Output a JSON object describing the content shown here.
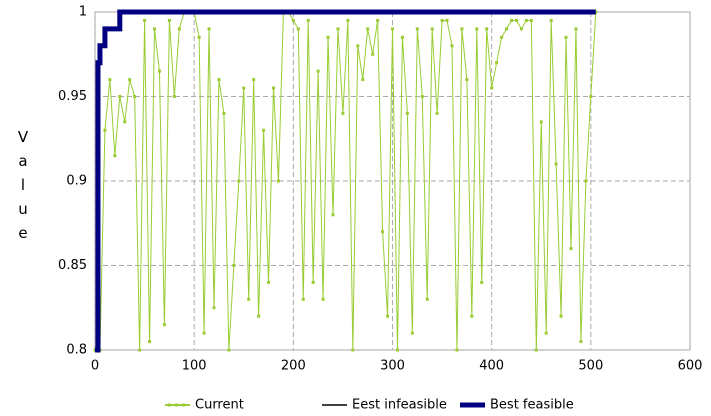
{
  "chart_data": {
    "type": "line",
    "ylabel": "Value",
    "xlim": [
      0,
      600
    ],
    "ylim": [
      0.8,
      1
    ],
    "xticks": [
      0,
      100,
      200,
      300,
      400,
      500,
      600
    ],
    "yticks": [
      0.8,
      0.85,
      0.9,
      0.95,
      1
    ],
    "grid": true,
    "legend": "bottom",
    "series": [
      {
        "name": "Current",
        "color": "#99cc33",
        "x": [
          0,
          5,
          10,
          15,
          20,
          25,
          30,
          35,
          40,
          45,
          50,
          55,
          60,
          65,
          70,
          75,
          80,
          85,
          90,
          95,
          100,
          105,
          110,
          115,
          120,
          125,
          130,
          135,
          140,
          145,
          150,
          155,
          160,
          165,
          170,
          175,
          180,
          185,
          190,
          195,
          200,
          205,
          210,
          215,
          220,
          225,
          230,
          235,
          240,
          245,
          250,
          255,
          260,
          265,
          270,
          275,
          280,
          285,
          290,
          295,
          300,
          305,
          310,
          315,
          320,
          325,
          330,
          335,
          340,
          345,
          350,
          355,
          360,
          365,
          370,
          375,
          380,
          385,
          390,
          395,
          400,
          405,
          410,
          415,
          420,
          425,
          430,
          435,
          440,
          445,
          450,
          455,
          460,
          465,
          470,
          475,
          480,
          485,
          490,
          495,
          500,
          505
        ],
        "values": [
          0.8,
          0.8,
          0.93,
          0.96,
          0.915,
          0.95,
          0.935,
          0.96,
          0.95,
          0.8,
          0.995,
          0.805,
          0.99,
          0.965,
          0.815,
          0.995,
          0.95,
          0.99,
          1,
          1,
          1,
          0.985,
          0.81,
          0.99,
          0.825,
          0.96,
          0.94,
          0.8,
          0.85,
          0.9,
          0.955,
          0.83,
          0.96,
          0.82,
          0.93,
          0.84,
          0.955,
          0.9,
          1,
          1,
          0.995,
          0.99,
          0.83,
          0.995,
          0.84,
          0.965,
          0.83,
          0.985,
          0.88,
          0.99,
          0.94,
          0.995,
          0.8,
          0.98,
          0.96,
          0.99,
          0.975,
          0.995,
          0.87,
          0.82,
          0.99,
          0.8,
          0.985,
          0.94,
          0.81,
          0.99,
          0.95,
          0.83,
          0.99,
          0.94,
          0.995,
          0.995,
          0.98,
          0.8,
          0.99,
          0.96,
          0.82,
          0.99,
          0.84,
          0.99,
          0.955,
          0.97,
          0.985,
          0.99,
          0.995,
          0.995,
          0.99,
          0.995,
          0.995,
          0.8,
          0.935,
          0.81,
          0.995,
          0.91,
          0.82,
          0.985,
          0.86,
          0.99,
          0.805,
          0.9,
          0.95,
          1
        ]
      },
      {
        "name": "Eest infeasible",
        "color": "#000000",
        "x": [],
        "values": []
      },
      {
        "name": "Best feasible",
        "color": "#000080",
        "x": [
          0,
          3,
          3,
          5,
          5,
          10,
          10,
          25,
          25,
          505
        ],
        "values": [
          0.8,
          0.8,
          0.97,
          0.97,
          0.98,
          0.98,
          0.99,
          0.99,
          1,
          1
        ]
      }
    ]
  }
}
